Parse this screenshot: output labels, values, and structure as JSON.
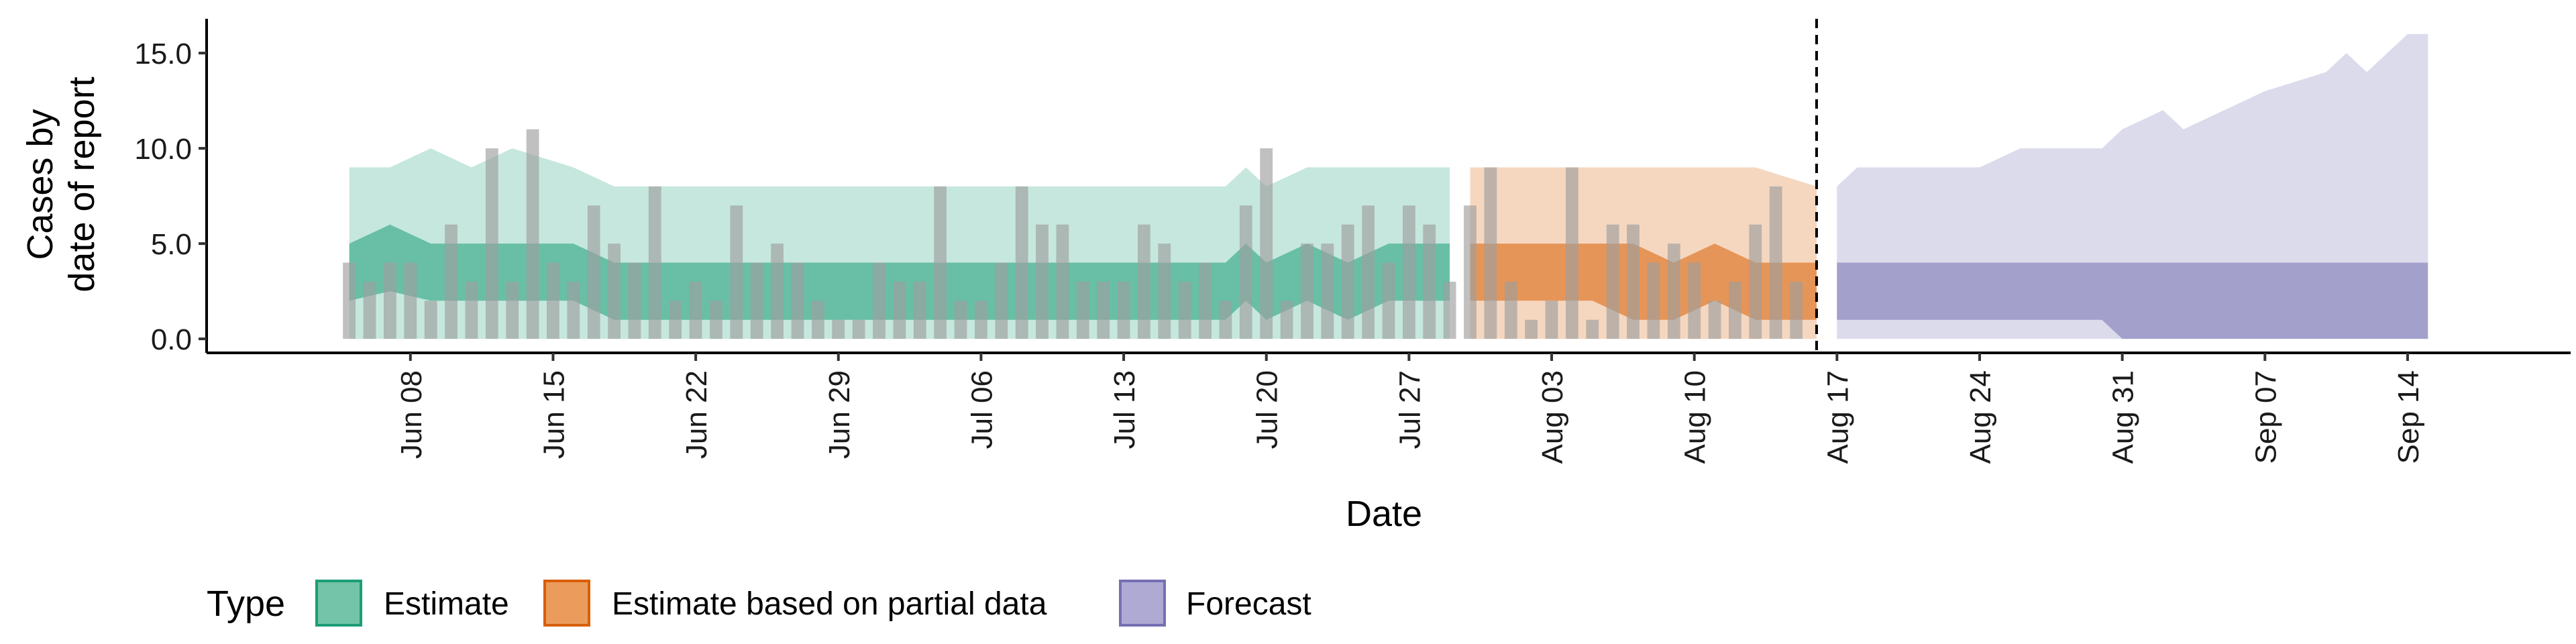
{
  "chart_data": {
    "type": "area",
    "xlabel": "Date",
    "ylabel_lines": [
      "Cases by",
      "date of report"
    ],
    "x_ticks": [
      "Jun 08",
      "Jun 15",
      "Jun 22",
      "Jun 29",
      "Jul 06",
      "Jul 13",
      "Jul 20",
      "Jul 27",
      "Aug 03",
      "Aug 10",
      "Aug 17",
      "Aug 24",
      "Aug 31",
      "Sep 07",
      "Sep 14"
    ],
    "y_ticks": [
      "0.0",
      "5.0",
      "10.0",
      "15.0"
    ],
    "ylim": [
      -0.7,
      16.8
    ],
    "xlim": [
      "2020-05-29",
      "2020-09-22"
    ],
    "cutoff_date": "2020-08-16",
    "reported_cases": [
      {
        "date": "2020-06-05",
        "value": 4
      },
      {
        "date": "2020-06-06",
        "value": 3
      },
      {
        "date": "2020-06-07",
        "value": 4
      },
      {
        "date": "2020-06-08",
        "value": 4
      },
      {
        "date": "2020-06-09",
        "value": 2
      },
      {
        "date": "2020-06-10",
        "value": 6
      },
      {
        "date": "2020-06-11",
        "value": 3
      },
      {
        "date": "2020-06-12",
        "value": 10
      },
      {
        "date": "2020-06-13",
        "value": 3
      },
      {
        "date": "2020-06-14",
        "value": 11
      },
      {
        "date": "2020-06-15",
        "value": 4
      },
      {
        "date": "2020-06-16",
        "value": 3
      },
      {
        "date": "2020-06-17",
        "value": 7
      },
      {
        "date": "2020-06-18",
        "value": 5
      },
      {
        "date": "2020-06-19",
        "value": 4
      },
      {
        "date": "2020-06-20",
        "value": 8
      },
      {
        "date": "2020-06-21",
        "value": 2
      },
      {
        "date": "2020-06-22",
        "value": 3
      },
      {
        "date": "2020-06-23",
        "value": 2
      },
      {
        "date": "2020-06-24",
        "value": 7
      },
      {
        "date": "2020-06-25",
        "value": 4
      },
      {
        "date": "2020-06-26",
        "value": 5
      },
      {
        "date": "2020-06-27",
        "value": 4
      },
      {
        "date": "2020-06-28",
        "value": 2
      },
      {
        "date": "2020-06-29",
        "value": 1
      },
      {
        "date": "2020-06-30",
        "value": 1
      },
      {
        "date": "2020-07-01",
        "value": 4
      },
      {
        "date": "2020-07-02",
        "value": 3
      },
      {
        "date": "2020-07-03",
        "value": 3
      },
      {
        "date": "2020-07-04",
        "value": 8
      },
      {
        "date": "2020-07-05",
        "value": 2
      },
      {
        "date": "2020-07-06",
        "value": 2
      },
      {
        "date": "2020-07-07",
        "value": 4
      },
      {
        "date": "2020-07-08",
        "value": 8
      },
      {
        "date": "2020-07-09",
        "value": 6
      },
      {
        "date": "2020-07-10",
        "value": 6
      },
      {
        "date": "2020-07-11",
        "value": 3
      },
      {
        "date": "2020-07-12",
        "value": 3
      },
      {
        "date": "2020-07-13",
        "value": 3
      },
      {
        "date": "2020-07-14",
        "value": 6
      },
      {
        "date": "2020-07-15",
        "value": 5
      },
      {
        "date": "2020-07-16",
        "value": 3
      },
      {
        "date": "2020-07-17",
        "value": 4
      },
      {
        "date": "2020-07-18",
        "value": 2
      },
      {
        "date": "2020-07-19",
        "value": 7
      },
      {
        "date": "2020-07-20",
        "value": 10
      },
      {
        "date": "2020-07-21",
        "value": 2
      },
      {
        "date": "2020-07-22",
        "value": 5
      },
      {
        "date": "2020-07-23",
        "value": 5
      },
      {
        "date": "2020-07-24",
        "value": 6
      },
      {
        "date": "2020-07-25",
        "value": 7
      },
      {
        "date": "2020-07-26",
        "value": 4
      },
      {
        "date": "2020-07-27",
        "value": 7
      },
      {
        "date": "2020-07-28",
        "value": 6
      },
      {
        "date": "2020-07-29",
        "value": 3
      },
      {
        "date": "2020-07-30",
        "value": 7
      },
      {
        "date": "2020-07-31",
        "value": 9
      },
      {
        "date": "2020-08-01",
        "value": 3
      },
      {
        "date": "2020-08-02",
        "value": 1
      },
      {
        "date": "2020-08-03",
        "value": 2
      },
      {
        "date": "2020-08-04",
        "value": 9
      },
      {
        "date": "2020-08-05",
        "value": 1
      },
      {
        "date": "2020-08-06",
        "value": 6
      },
      {
        "date": "2020-08-07",
        "value": 6
      },
      {
        "date": "2020-08-08",
        "value": 4
      },
      {
        "date": "2020-08-09",
        "value": 5
      },
      {
        "date": "2020-08-10",
        "value": 4
      },
      {
        "date": "2020-08-11",
        "value": 2
      },
      {
        "date": "2020-08-12",
        "value": 3
      },
      {
        "date": "2020-08-13",
        "value": 6
      },
      {
        "date": "2020-08-14",
        "value": 8
      },
      {
        "date": "2020-08-15",
        "value": 3
      }
    ],
    "series": [
      {
        "name": "Estimate",
        "color": "#1b9e77",
        "points": [
          {
            "date": "2020-06-05",
            "lo90": 0,
            "hi90": 9,
            "lo50": 2,
            "hi50": 5
          },
          {
            "date": "2020-06-07",
            "lo90": 0,
            "hi90": 9,
            "lo50": 2.5,
            "hi50": 6
          },
          {
            "date": "2020-06-09",
            "lo90": 0,
            "hi90": 10,
            "lo50": 2,
            "hi50": 5
          },
          {
            "date": "2020-06-11",
            "lo90": 0,
            "hi90": 9,
            "lo50": 2,
            "hi50": 5
          },
          {
            "date": "2020-06-13",
            "lo90": 0,
            "hi90": 10,
            "lo50": 2,
            "hi50": 5
          },
          {
            "date": "2020-06-16",
            "lo90": 0,
            "hi90": 9,
            "lo50": 2,
            "hi50": 5
          },
          {
            "date": "2020-06-18",
            "lo90": 0,
            "hi90": 8,
            "lo50": 1,
            "hi50": 4
          },
          {
            "date": "2020-07-18",
            "lo90": 0,
            "hi90": 8,
            "lo50": 1,
            "hi50": 4
          },
          {
            "date": "2020-07-19",
            "lo90": 0,
            "hi90": 9,
            "lo50": 2,
            "hi50": 5
          },
          {
            "date": "2020-07-20",
            "lo90": 0,
            "hi90": 8,
            "lo50": 1,
            "hi50": 4
          },
          {
            "date": "2020-07-22",
            "lo90": 0,
            "hi90": 9,
            "lo50": 2,
            "hi50": 5
          },
          {
            "date": "2020-07-24",
            "lo90": 0,
            "hi90": 9,
            "lo50": 1,
            "hi50": 4
          },
          {
            "date": "2020-07-26",
            "lo90": 0,
            "hi90": 9,
            "lo50": 2,
            "hi50": 5
          },
          {
            "date": "2020-07-29",
            "lo90": 0,
            "hi90": 9,
            "lo50": 2,
            "hi50": 5
          }
        ]
      },
      {
        "name": "Estimate based on partial data",
        "color": "#d95f02",
        "points": [
          {
            "date": "2020-07-30",
            "lo90": 0,
            "hi90": 9,
            "lo50": 2,
            "hi50": 5
          },
          {
            "date": "2020-08-05",
            "lo90": 0,
            "hi90": 9,
            "lo50": 2,
            "hi50": 5
          },
          {
            "date": "2020-08-07",
            "lo90": 0,
            "hi90": 9,
            "lo50": 1,
            "hi50": 5
          },
          {
            "date": "2020-08-09",
            "lo90": 0,
            "hi90": 9,
            "lo50": 1,
            "hi50": 4
          },
          {
            "date": "2020-08-11",
            "lo90": 0,
            "hi90": 9,
            "lo50": 2,
            "hi50": 5
          },
          {
            "date": "2020-08-13",
            "lo90": 0,
            "hi90": 9,
            "lo50": 1,
            "hi50": 4
          },
          {
            "date": "2020-08-16",
            "lo90": 0,
            "hi90": 8,
            "lo50": 1,
            "hi50": 4
          }
        ]
      },
      {
        "name": "Forecast",
        "color": "#7570b3",
        "points": [
          {
            "date": "2020-08-17",
            "lo90": 0,
            "hi90": 8,
            "lo50": 1,
            "hi50": 4
          },
          {
            "date": "2020-08-18",
            "lo90": 0,
            "hi90": 9,
            "lo50": 1,
            "hi50": 4
          },
          {
            "date": "2020-08-24",
            "lo90": 0,
            "hi90": 9,
            "lo50": 1,
            "hi50": 4
          },
          {
            "date": "2020-08-26",
            "lo90": 0,
            "hi90": 10,
            "lo50": 1,
            "hi50": 4
          },
          {
            "date": "2020-08-30",
            "lo90": 0,
            "hi90": 10,
            "lo50": 1,
            "hi50": 4
          },
          {
            "date": "2020-08-31",
            "lo90": 0,
            "hi90": 11,
            "lo50": 0,
            "hi50": 4
          },
          {
            "date": "2020-09-02",
            "lo90": 0,
            "hi90": 12,
            "lo50": 0,
            "hi50": 4
          },
          {
            "date": "2020-09-03",
            "lo90": 0,
            "hi90": 11,
            "lo50": 0,
            "hi50": 4
          },
          {
            "date": "2020-09-05",
            "lo90": 0,
            "hi90": 12,
            "lo50": 0,
            "hi50": 4
          },
          {
            "date": "2020-09-07",
            "lo90": 0,
            "hi90": 13,
            "lo50": 0,
            "hi50": 4
          },
          {
            "date": "2020-09-10",
            "lo90": 0,
            "hi90": 14,
            "lo50": 0,
            "hi50": 4
          },
          {
            "date": "2020-09-11",
            "lo90": 0,
            "hi90": 15,
            "lo50": 0,
            "hi50": 4
          },
          {
            "date": "2020-09-12",
            "lo90": 0,
            "hi90": 14,
            "lo50": 0,
            "hi50": 4
          },
          {
            "date": "2020-09-14",
            "lo90": 0,
            "hi90": 16,
            "lo50": 0,
            "hi50": 4
          },
          {
            "date": "2020-09-15",
            "lo90": 0,
            "hi90": 16,
            "lo50": 0,
            "hi50": 4
          }
        ]
      }
    ],
    "legend": {
      "title": "Type",
      "position": "bottom-left",
      "items": [
        {
          "label": "Estimate",
          "fill": "#73c4a8",
          "stroke": "#1b9e77"
        },
        {
          "label": "Estimate based on partial data",
          "fill": "#eb9c5c",
          "stroke": "#d95f02"
        },
        {
          "label": "Forecast",
          "fill": "#aeaad4",
          "stroke": "#7570b3"
        }
      ]
    },
    "grid": false,
    "bar_color": "#9e9e9e"
  }
}
